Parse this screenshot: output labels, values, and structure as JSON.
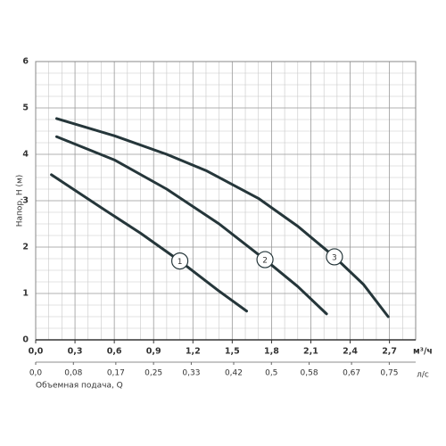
{
  "chart_data": {
    "type": "line",
    "ylabel": "Напор, H (м)",
    "xlabel": "Объемная подача, Q",
    "xunit": "м³/ч",
    "x2unit": "л/с",
    "xlim": [
      0,
      2.9
    ],
    "ylim": [
      0,
      6
    ],
    "x2lim": [
      0,
      0.806
    ],
    "grid": true,
    "xticks": [
      {
        "value": 0,
        "label": "0,0"
      },
      {
        "value": 0.3,
        "label": "0,3"
      },
      {
        "value": 0.6,
        "label": "0,6"
      },
      {
        "value": 0.9,
        "label": "0,9"
      },
      {
        "value": 1.2,
        "label": "1,2"
      },
      {
        "value": 1.5,
        "label": "1,5"
      },
      {
        "value": 1.8,
        "label": "1,8"
      },
      {
        "value": 2.1,
        "label": "2,1"
      },
      {
        "value": 2.4,
        "label": "2,4"
      },
      {
        "value": 2.7,
        "label": "2,7"
      }
    ],
    "x2ticks": [
      {
        "value": 0,
        "label": "0,0"
      },
      {
        "value": 0.08,
        "label": "0,08"
      },
      {
        "value": 0.17,
        "label": "0,17"
      },
      {
        "value": 0.25,
        "label": "0,25"
      },
      {
        "value": 0.33,
        "label": "0,33"
      },
      {
        "value": 0.42,
        "label": "0,42"
      },
      {
        "value": 0.5,
        "label": "0,5"
      },
      {
        "value": 0.58,
        "label": "0,58"
      },
      {
        "value": 0.67,
        "label": "0,67"
      },
      {
        "value": 0.75,
        "label": "0,75"
      }
    ],
    "yticks": [
      0,
      1,
      2,
      3,
      4,
      5,
      6
    ],
    "series": [
      {
        "name": "1",
        "color": "#25363a",
        "x": [
          0.12,
          0.5,
          0.8,
          1.1,
          1.4,
          1.61
        ],
        "values": [
          3.56,
          2.85,
          2.3,
          1.7,
          1.05,
          0.62
        ]
      },
      {
        "name": "2",
        "color": "#25363a",
        "x": [
          0.16,
          0.6,
          1.0,
          1.4,
          1.75,
          2.0,
          2.22
        ],
        "values": [
          4.38,
          3.88,
          3.25,
          2.5,
          1.73,
          1.15,
          0.56
        ]
      },
      {
        "name": "3",
        "color": "#25363a",
        "x": [
          0.16,
          0.6,
          1.0,
          1.3,
          1.7,
          2.0,
          2.28,
          2.5,
          2.69
        ],
        "values": [
          4.77,
          4.4,
          4.0,
          3.65,
          3.05,
          2.45,
          1.79,
          1.2,
          0.5
        ]
      }
    ]
  }
}
